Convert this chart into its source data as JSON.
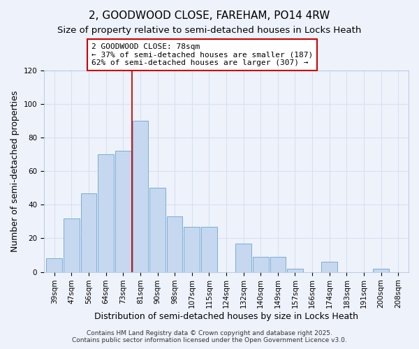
{
  "title": "2, GOODWOOD CLOSE, FAREHAM, PO14 4RW",
  "subtitle": "Size of property relative to semi-detached houses in Locks Heath",
  "xlabel": "Distribution of semi-detached houses by size in Locks Heath",
  "ylabel": "Number of semi-detached properties",
  "bar_labels": [
    "39sqm",
    "47sqm",
    "56sqm",
    "64sqm",
    "73sqm",
    "81sqm",
    "90sqm",
    "98sqm",
    "107sqm",
    "115sqm",
    "124sqm",
    "132sqm",
    "140sqm",
    "149sqm",
    "157sqm",
    "166sqm",
    "174sqm",
    "183sqm",
    "191sqm",
    "200sqm",
    "208sqm"
  ],
  "bar_values": [
    8,
    32,
    47,
    70,
    72,
    90,
    50,
    33,
    27,
    27,
    0,
    17,
    9,
    9,
    2,
    0,
    6,
    0,
    0,
    2,
    0
  ],
  "bar_color": "#c5d8f0",
  "bar_edge_color": "#7aadd4",
  "vline_color": "#cc0000",
  "vline_x": 4.5,
  "annotation_text": "2 GOODWOOD CLOSE: 78sqm\n← 37% of semi-detached houses are smaller (187)\n62% of semi-detached houses are larger (307) →",
  "ylim": [
    0,
    120
  ],
  "yticks": [
    0,
    20,
    40,
    60,
    80,
    100,
    120
  ],
  "footnote1": "Contains HM Land Registry data © Crown copyright and database right 2025.",
  "footnote2": "Contains public sector information licensed under the Open Government Licence v3.0.",
  "background_color": "#eef2fb",
  "grid_color": "#d8e0f0",
  "title_fontsize": 11,
  "subtitle_fontsize": 9.5,
  "axis_label_fontsize": 9,
  "tick_fontsize": 7.5,
  "footnote_fontsize": 6.5,
  "annotation_fontsize": 8
}
